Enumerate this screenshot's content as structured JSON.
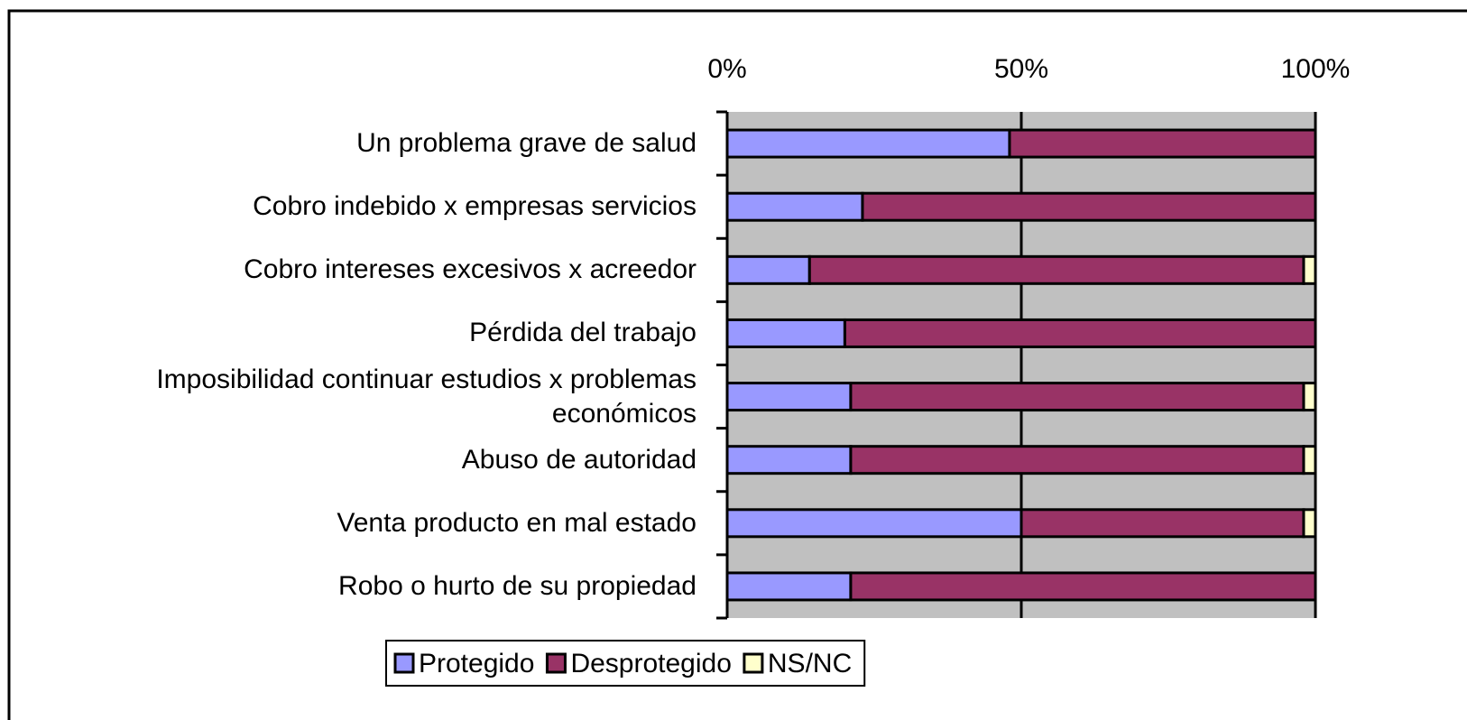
{
  "chart_data": {
    "type": "stacked_barh",
    "categories": [
      "Un problema grave de salud",
      "Cobro indebido x empresas servicios",
      "Cobro intereses excesivos x acreedor",
      "Pérdida del trabajo",
      "Imposibilidad continuar estudios x problemas económicos",
      "Abuso de autoridad",
      "Venta producto en mal estado",
      "Robo o hurto de su propiedad"
    ],
    "series": [
      {
        "name": "Protegido",
        "color": "#9999ff",
        "values": [
          48,
          23,
          14,
          20,
          21,
          21,
          50,
          21
        ]
      },
      {
        "name": "Desprotegido",
        "color": "#993366",
        "values": [
          52,
          77,
          84,
          80,
          77,
          77,
          48,
          79
        ]
      },
      {
        "name": "NS/NC",
        "color": "#ffffcc",
        "values": [
          0,
          0,
          2,
          0,
          2,
          2,
          2,
          0
        ]
      }
    ],
    "xlim": [
      0,
      100
    ],
    "xticks": [
      {
        "value": 0,
        "label": "0%"
      },
      {
        "value": 50,
        "label": "50%"
      },
      {
        "value": 100,
        "label": "100%"
      }
    ],
    "grid": true,
    "legend": "bottom",
    "plot_background": "#c0c0c0"
  }
}
